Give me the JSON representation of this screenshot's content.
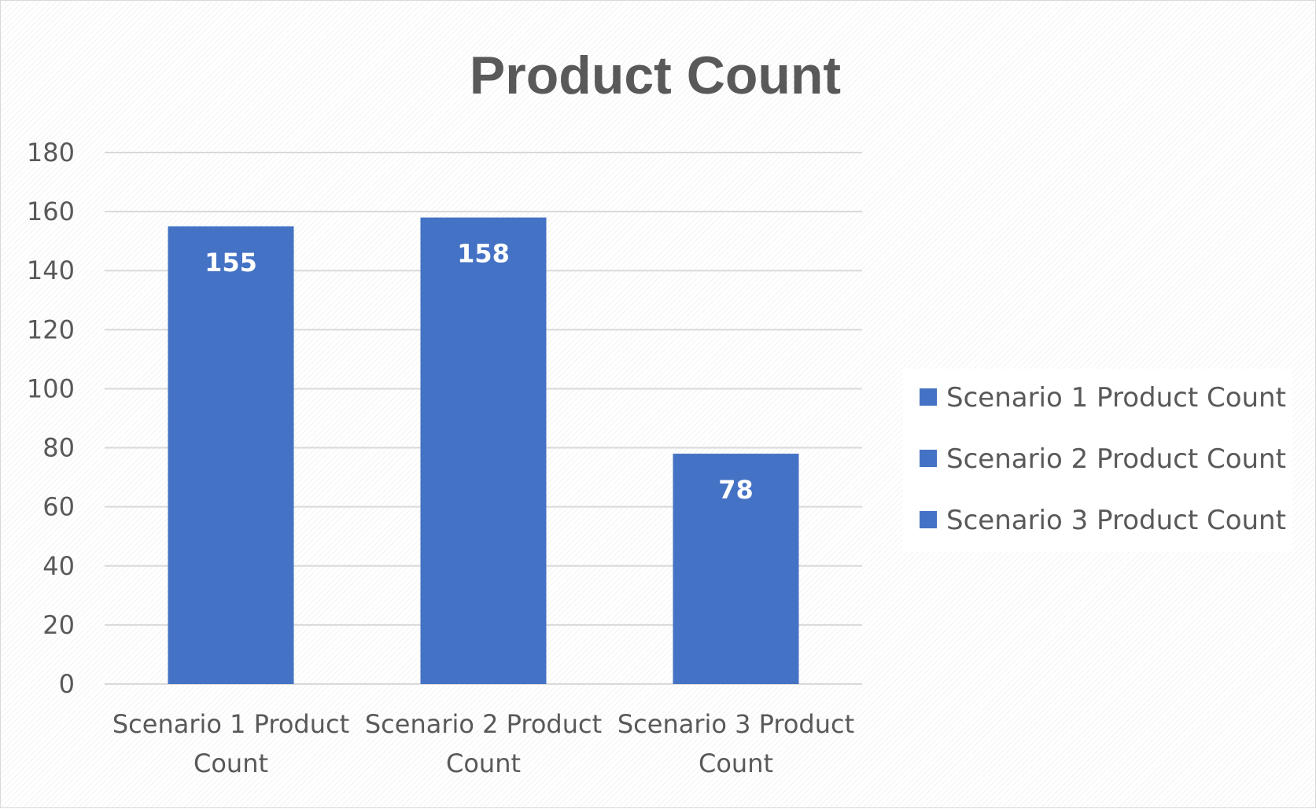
{
  "chart_data": {
    "type": "bar",
    "title": "Product Count",
    "categories": [
      "Scenario 1 Product Count",
      "Scenario 2 Product Count",
      "Scenario 3 Product Count"
    ],
    "category_label_lines": [
      [
        "Scenario 1 Product",
        "Count"
      ],
      [
        "Scenario 2 Product",
        "Count"
      ],
      [
        "Scenario 3 Product",
        "Count"
      ]
    ],
    "values": [
      155,
      158,
      78
    ],
    "data_labels": [
      "155",
      "158",
      "78"
    ],
    "ylim": [
      0,
      180
    ],
    "yticks": [
      "0",
      "20",
      "40",
      "60",
      "80",
      "100",
      "120",
      "140",
      "160",
      "180"
    ],
    "grid": true,
    "legend": {
      "position": "right",
      "entries": [
        "Scenario 1 Product Count",
        "Scenario 2 Product Count",
        "Scenario 3 Product Count"
      ]
    },
    "colors": {
      "bar": "#4472c4",
      "grid": "#d9d9d9",
      "text": "#595959"
    }
  }
}
